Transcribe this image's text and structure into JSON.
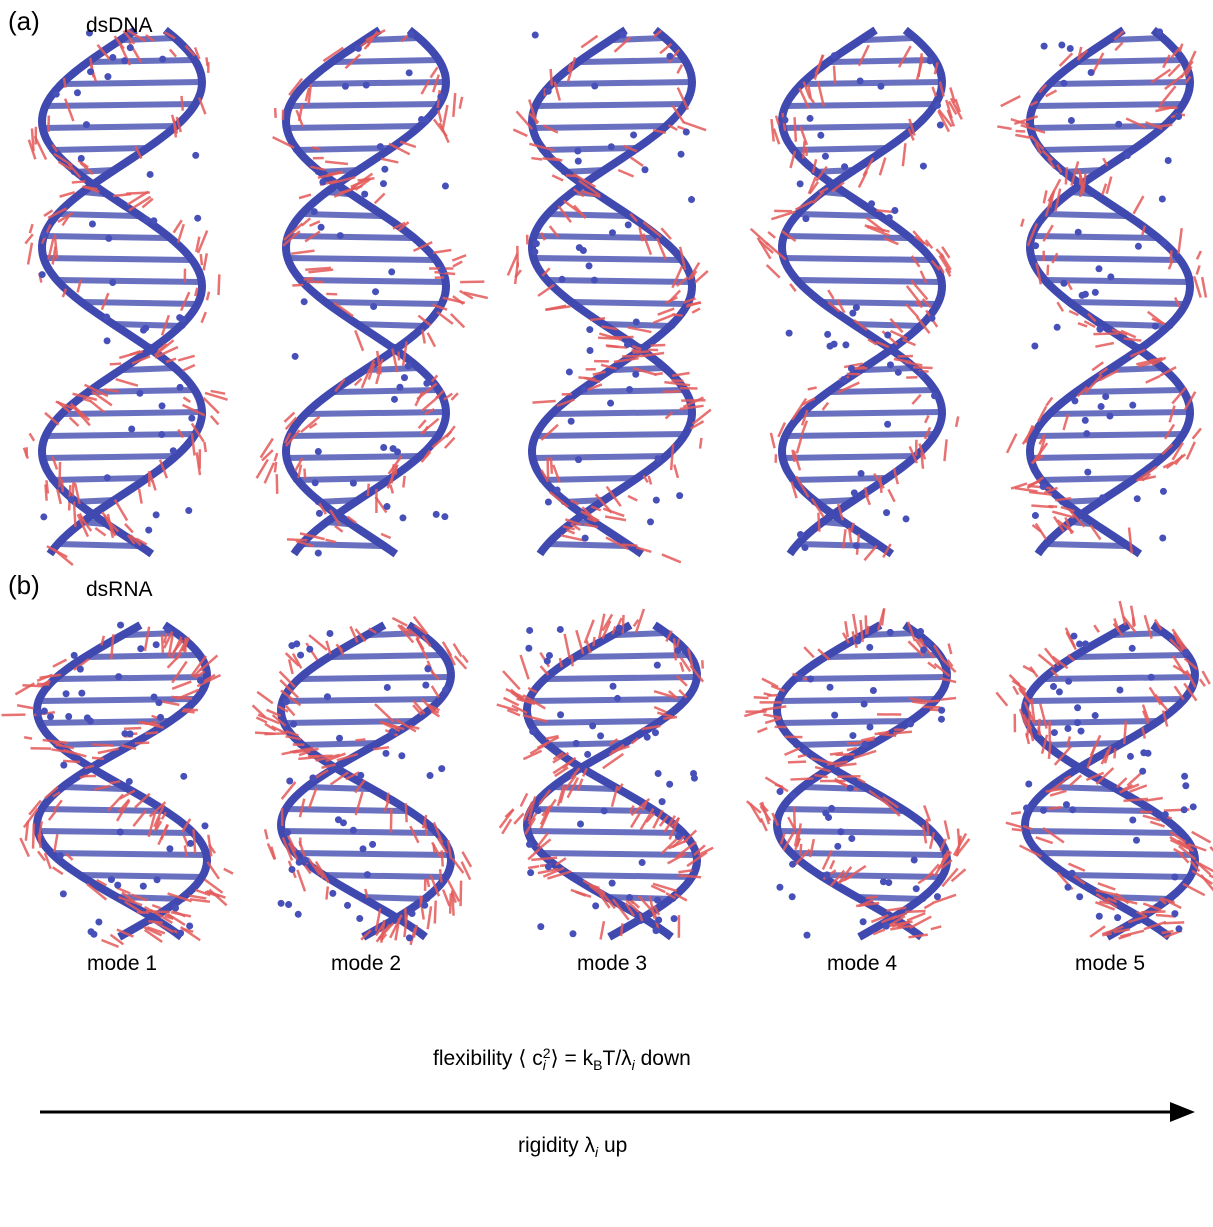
{
  "panels": [
    {
      "label": "(a)",
      "title": "dsDNA"
    },
    {
      "label": "(b)",
      "title": "dsRNA"
    }
  ],
  "modes": [
    "mode 1",
    "mode 2",
    "mode 3",
    "mode 4",
    "mode 5"
  ],
  "axis": {
    "flexibility": {
      "before": "flexibility ⟨ c",
      "sup": "2",
      "sub": "i",
      "after": "⟩ = k",
      "sub2": "B",
      "after2": "T/λ",
      "sub3": "i",
      "end": " down"
    },
    "rigidity": {
      "before": "rigidity λ",
      "sub": "i",
      "end": " up"
    }
  }
}
